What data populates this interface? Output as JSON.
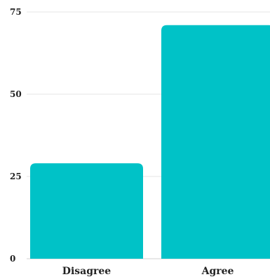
{
  "chart_data": {
    "type": "bar",
    "categories": [
      "Disagree",
      "Agree"
    ],
    "values": [
      29,
      71
    ],
    "y_ticks": [
      "0",
      "25",
      "50",
      "75"
    ],
    "ylim": [
      0,
      75
    ],
    "grid": true,
    "legend": "none",
    "bar_color": "#00c2c7",
    "title": "",
    "xlabel": "",
    "ylabel": ""
  }
}
